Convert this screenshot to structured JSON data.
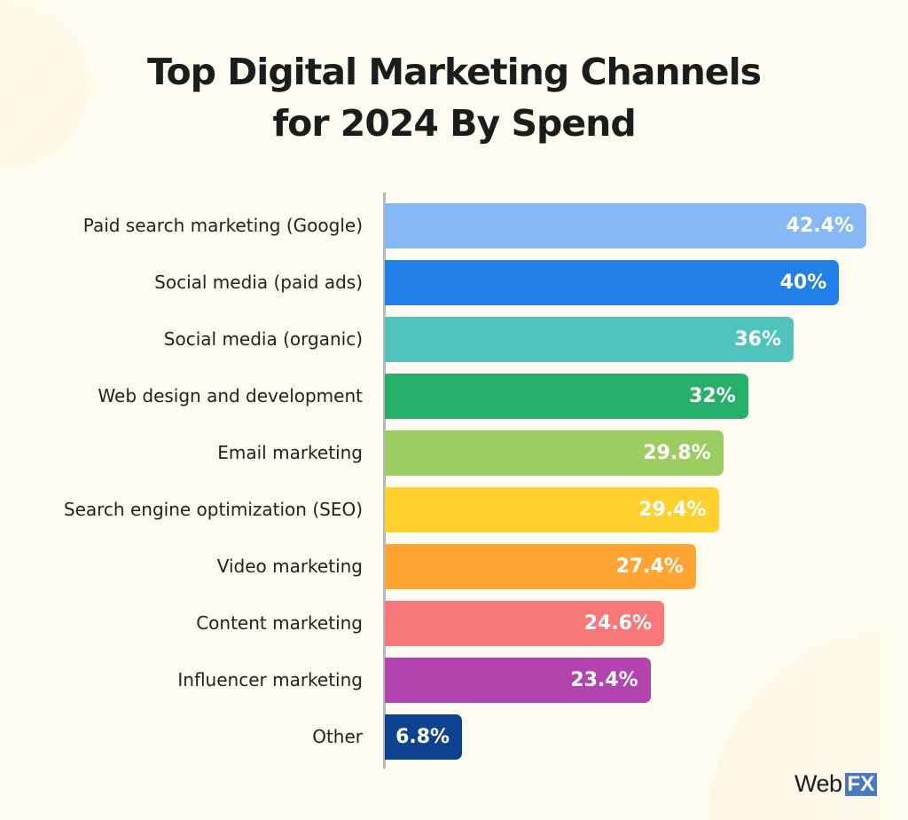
{
  "chart_data": {
    "type": "bar",
    "orientation": "horizontal",
    "title_lines": [
      "Top Digital Marketing Channels",
      "for 2024 By Spend"
    ],
    "categories": [
      "Paid search marketing (Google)",
      "Social media (paid ads)",
      "Social media (organic)",
      "Web design and development",
      "Email marketing",
      "Search engine optimization (SEO)",
      "Video marketing",
      "Content marketing",
      "Influencer marketing",
      "Other"
    ],
    "values": [
      42.4,
      40,
      36,
      32,
      29.8,
      29.4,
      27.4,
      24.6,
      23.4,
      6.8
    ],
    "data_labels": [
      "42.4%",
      "40%",
      "36%",
      "32%",
      "29.8%",
      "29.4%",
      "27.4%",
      "24.6%",
      "23.4%",
      "6.8%"
    ],
    "colors": [
      "#85B8F5",
      "#217FE8",
      "#4FC3BC",
      "#27B06B",
      "#9CCD62",
      "#FFD12E",
      "#FFA332",
      "#F87878",
      "#B343AE",
      "#0E4290"
    ],
    "xlim": [
      0,
      42.4
    ],
    "grid": false,
    "legend": "none"
  },
  "brand": {
    "logo_text": "WebFX",
    "logo_part1": "Web",
    "logo_part2": "FX",
    "accent": "#4A78C4"
  }
}
